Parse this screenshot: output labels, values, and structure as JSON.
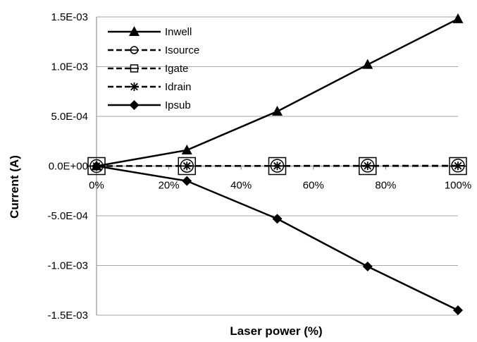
{
  "chart_data": {
    "type": "line",
    "title": "",
    "xlabel": "Laser power (%)",
    "ylabel": "Current  (A)",
    "x": [
      0,
      25,
      50,
      75,
      100
    ],
    "xlim": [
      0,
      100
    ],
    "ylim": [
      -0.0015,
      0.0015
    ],
    "xticks": [
      0,
      20,
      40,
      60,
      80,
      100
    ],
    "xtick_labels": [
      "0%",
      "20%",
      "40%",
      "60%",
      "80%",
      "100%"
    ],
    "yticks": [
      0.0015,
      0.001,
      0.0005,
      0,
      -0.0005,
      -0.001,
      -0.0015
    ],
    "ytick_labels": [
      "1.5E-03",
      "1.0E-03",
      "5.0E-04",
      "0.0E+00",
      "-5.0E-04",
      "-1.0E-03",
      "-1.5E-03"
    ],
    "grid": "horizontal",
    "legend_position": "top-left",
    "series": [
      {
        "name": "Inwell",
        "values": [
          0,
          0.00016,
          0.00055,
          0.00102,
          0.00148
        ],
        "marker": "triangle",
        "dash": "solid",
        "color": "#000000"
      },
      {
        "name": "Isource",
        "values": [
          0,
          2e-06,
          3e-06,
          4e-06,
          5e-06
        ],
        "marker": "circle-line",
        "dash": "dashed",
        "color": "#000000"
      },
      {
        "name": "Igate",
        "values": [
          0,
          0,
          0,
          0,
          0
        ],
        "marker": "square-line",
        "dash": "dashed",
        "color": "#000000"
      },
      {
        "name": "Idrain",
        "values": [
          0,
          1e-06,
          1e-06,
          2e-06,
          2e-06
        ],
        "marker": "star",
        "dash": "dashed",
        "color": "#000000"
      },
      {
        "name": "Ipsub",
        "values": [
          0,
          -0.00015,
          -0.00053,
          -0.00101,
          -0.00145
        ],
        "marker": "diamond",
        "dash": "solid",
        "color": "#000000"
      }
    ]
  }
}
